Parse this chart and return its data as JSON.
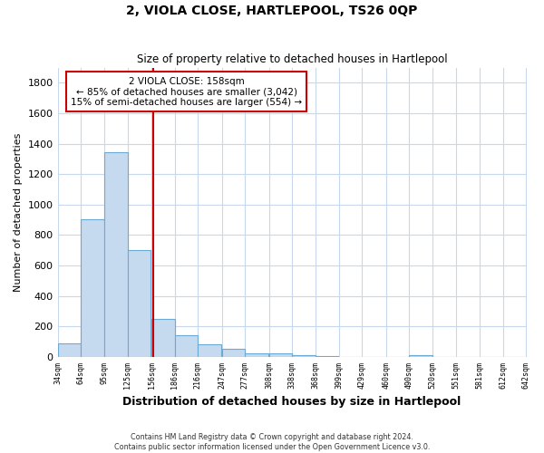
{
  "title": "2, VIOLA CLOSE, HARTLEPOOL, TS26 0QP",
  "subtitle": "Size of property relative to detached houses in Hartlepool",
  "xlabel": "Distribution of detached houses by size in Hartlepool",
  "ylabel": "Number of detached properties",
  "bar_left_edges": [
    34,
    64,
    95,
    125,
    156,
    186,
    216,
    247,
    277,
    308,
    338,
    368,
    399,
    429,
    460,
    490,
    520,
    551,
    581,
    612
  ],
  "bar_heights": [
    90,
    905,
    1345,
    700,
    250,
    140,
    80,
    52,
    25,
    20,
    10,
    5,
    0,
    0,
    0,
    10,
    0,
    0,
    0,
    0
  ],
  "bin_width": 30,
  "bar_color": "#c5d9ef",
  "bar_edge_color": "#6aaad4",
  "property_line_x": 158,
  "property_line_color": "#cc0000",
  "annotation_line1": "2 VIOLA CLOSE: 158sqm",
  "annotation_line2": "← 85% of detached houses are smaller (3,042)",
  "annotation_line3": "15% of semi-detached houses are larger (554) →",
  "annotation_box_color": "#cc0000",
  "ylim": [
    0,
    1900
  ],
  "yticks": [
    0,
    200,
    400,
    600,
    800,
    1000,
    1200,
    1400,
    1600,
    1800
  ],
  "tick_labels": [
    "34sqm",
    "64sqm",
    "95sqm",
    "125sqm",
    "156sqm",
    "186sqm",
    "216sqm",
    "247sqm",
    "277sqm",
    "308sqm",
    "338sqm",
    "368sqm",
    "399sqm",
    "429sqm",
    "460sqm",
    "490sqm",
    "520sqm",
    "551sqm",
    "581sqm",
    "612sqm",
    "642sqm"
  ],
  "footer_line1": "Contains HM Land Registry data © Crown copyright and database right 2024.",
  "footer_line2": "Contains public sector information licensed under the Open Government Licence v3.0.",
  "background_color": "#ffffff",
  "grid_color": "#c8d8ec"
}
